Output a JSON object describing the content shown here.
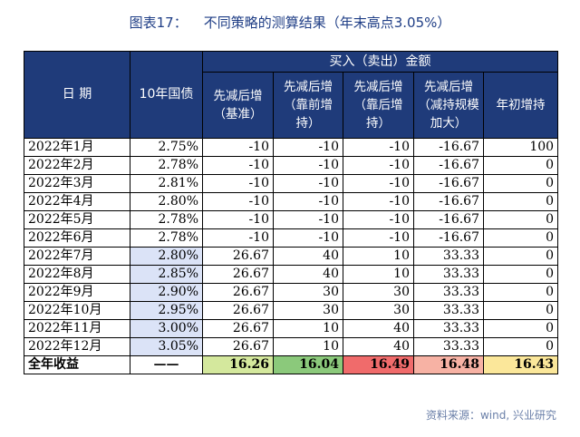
{
  "title": {
    "label": "图表17：",
    "text": "不同策略的测算结果（年末高点3.05%）"
  },
  "headers": {
    "date": "日 期",
    "rate": "10年国债",
    "group": "买入（卖出）金额",
    "cols": [
      "先减后增（基准）",
      "先减后增（靠前增持）",
      "先减后增（靠后增持）",
      "先减后增（减持规模加大）",
      "年初增持"
    ]
  },
  "rows": [
    {
      "date": "2022年1月",
      "rate": "2.75%",
      "v": [
        "-10",
        "-10",
        "-10",
        "-16.67",
        "100"
      ]
    },
    {
      "date": "2022年2月",
      "rate": "2.78%",
      "v": [
        "-10",
        "-10",
        "-10",
        "-16.67",
        "0"
      ]
    },
    {
      "date": "2022年3月",
      "rate": "2.81%",
      "v": [
        "-10",
        "-10",
        "-10",
        "-16.67",
        "0"
      ]
    },
    {
      "date": "2022年4月",
      "rate": "2.80%",
      "v": [
        "-10",
        "-10",
        "-10",
        "-16.67",
        "0"
      ]
    },
    {
      "date": "2022年5月",
      "rate": "2.78%",
      "v": [
        "-10",
        "-10",
        "-10",
        "-16.67",
        "0"
      ]
    },
    {
      "date": "2022年6月",
      "rate": "2.78%",
      "v": [
        "-10",
        "-10",
        "-10",
        "-16.67",
        "0"
      ]
    },
    {
      "date": "2022年7月",
      "rate": "2.80%",
      "v": [
        "26.67",
        "40",
        "10",
        "33.33",
        "0"
      ]
    },
    {
      "date": "2022年8月",
      "rate": "2.85%",
      "v": [
        "26.67",
        "40",
        "10",
        "33.33",
        "0"
      ]
    },
    {
      "date": "2022年9月",
      "rate": "2.90%",
      "v": [
        "26.67",
        "30",
        "30",
        "33.33",
        "0"
      ]
    },
    {
      "date": "2022年10月",
      "rate": "2.95%",
      "v": [
        "26.67",
        "30",
        "30",
        "33.33",
        "0"
      ]
    },
    {
      "date": "2022年11月",
      "rate": "3.00%",
      "v": [
        "26.67",
        "10",
        "40",
        "33.33",
        "0"
      ]
    },
    {
      "date": "2022年12月",
      "rate": "3.05%",
      "v": [
        "26.67",
        "10",
        "40",
        "33.33",
        "0"
      ]
    }
  ],
  "total": {
    "label": "全年收益",
    "rate": "——",
    "v": [
      "16.26",
      "16.04",
      "16.49",
      "16.48",
      "16.43"
    ]
  },
  "colors": {
    "header": "#1f3b7a",
    "rate_highlight": "#dbe3f7",
    "total": [
      "#d4e89d",
      "#8bc97b",
      "#f06b6b",
      "#f7b2a4",
      "#fbe79a"
    ]
  },
  "source": "资料来源：wind, 兴业研究"
}
